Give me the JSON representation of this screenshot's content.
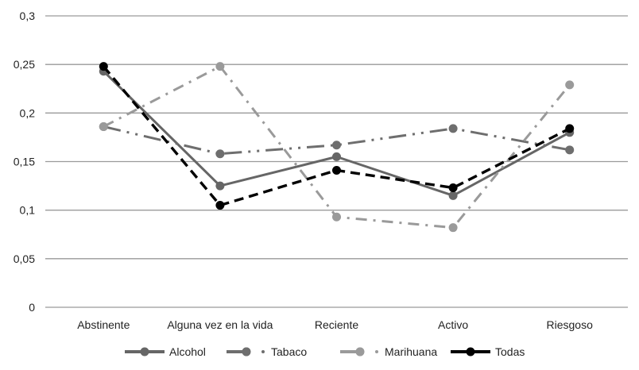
{
  "chart_data": {
    "type": "line",
    "title": "",
    "xlabel": "",
    "ylabel": "",
    "categories": [
      "Abstinente",
      "Alguna vez en la vida",
      "Reciente",
      "Activo",
      "Riesgoso"
    ],
    "ylim": [
      0,
      0.3
    ],
    "yticks": [
      "0",
      "0,05",
      "0,1",
      "0,15",
      "0,2",
      "0,25",
      "0,3"
    ],
    "grid": true,
    "legend_position": "bottom",
    "series": [
      {
        "name": "Alcohol",
        "values": [
          0.243,
          0.125,
          0.155,
          0.115,
          0.18
        ],
        "color": "#666666",
        "dash": "solid"
      },
      {
        "name": "Tabaco",
        "values": [
          0.186,
          0.158,
          0.167,
          0.184,
          0.162
        ],
        "color": "#6e6e6e",
        "dash": "longdashdot"
      },
      {
        "name": "Marihuana",
        "values": [
          0.186,
          0.248,
          0.093,
          0.082,
          0.229
        ],
        "color": "#9a9a9a",
        "dash": "dashdot"
      },
      {
        "name": "Todas",
        "values": [
          0.248,
          0.105,
          0.141,
          0.123,
          0.184
        ],
        "color": "#000000",
        "dash": "dash"
      }
    ]
  }
}
